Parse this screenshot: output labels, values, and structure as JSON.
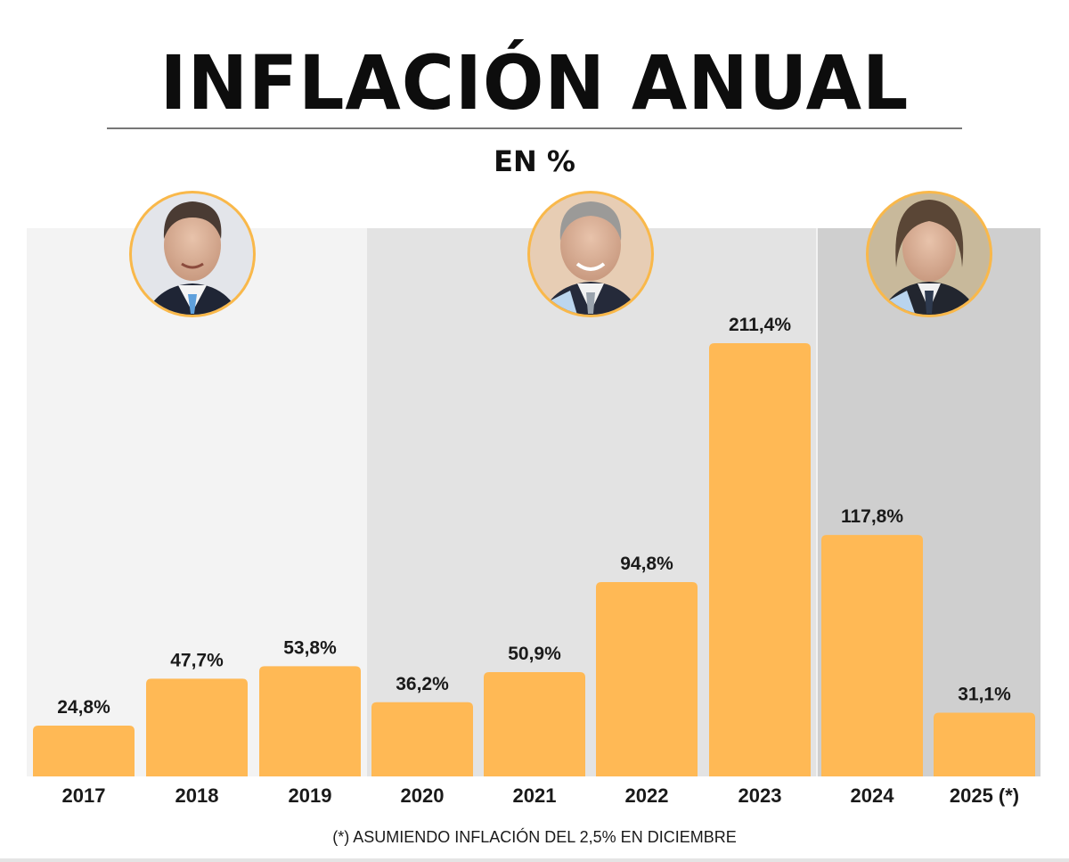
{
  "header": {
    "title": "INFLACIÓN ANUAL",
    "subtitle": "EN %"
  },
  "footnote": "(*) ASUMIENDO INFLACIÓN DEL 2,5% EN DICIEMBRE",
  "colors": {
    "bar": "#FFB955",
    "photo_ring": "#F9B84A",
    "period_1_bg": "#F3F3F3",
    "period_2_bg": "#E3E3E3",
    "period_3_bg": "#CFCFCF"
  },
  "periods": [
    {
      "name": "period-1",
      "portrait": "president-portrait-1",
      "years": [
        "2017",
        "2018",
        "2019"
      ]
    },
    {
      "name": "period-2",
      "portrait": "president-portrait-2",
      "years": [
        "2020",
        "2021",
        "2022",
        "2023"
      ]
    },
    {
      "name": "period-3",
      "portrait": "president-portrait-3",
      "years": [
        "2024",
        "2025 (*)"
      ]
    }
  ],
  "chart_data": {
    "type": "bar",
    "title": "INFLACIÓN ANUAL",
    "subtitle": "EN %",
    "xlabel": "",
    "ylabel": "",
    "categories": [
      "2017",
      "2018",
      "2019",
      "2020",
      "2021",
      "2022",
      "2023",
      "2024",
      "2025 (*)"
    ],
    "values": [
      24.8,
      47.7,
      53.8,
      36.2,
      50.9,
      94.8,
      211.4,
      117.8,
      31.1
    ],
    "value_labels": [
      "24,8%",
      "47,7%",
      "53,8%",
      "36,2%",
      "50,9%",
      "94,8%",
      "211,4%",
      "117,8%",
      "31,1%"
    ],
    "ylim": [
      0,
      220
    ],
    "grid": false,
    "legend": "none",
    "annotations": [
      "(*) ASUMIENDO INFLACIÓN DEL 2,5% EN DICIEMBRE"
    ]
  }
}
